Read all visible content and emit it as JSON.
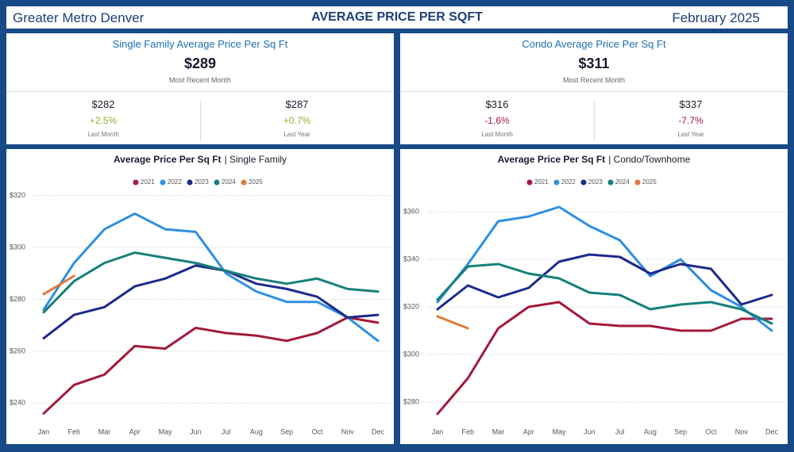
{
  "header": {
    "region": "Greater Metro Denver",
    "title": "AVERAGE PRICE PER SQFT",
    "date": "February 2025"
  },
  "kpis": [
    {
      "title": "Single Family Average Price Per Sq Ft",
      "value": "$289",
      "subtitle": "Most Recent Month",
      "comparisons": [
        {
          "value": "$282",
          "change": "+2.5%",
          "color": "#8ab52a",
          "label": "Last Month"
        },
        {
          "value": "$287",
          "change": "+0.7%",
          "color": "#8ab52a",
          "label": "Last Year"
        }
      ]
    },
    {
      "title": "Condo Average Price Per Sq Ft",
      "value": "$311",
      "subtitle": "Most Recent Month",
      "comparisons": [
        {
          "value": "$316",
          "change": "-1.6%",
          "color": "#a31a3b",
          "label": "Last Month"
        },
        {
          "value": "$337",
          "change": "-7.7%",
          "color": "#a31a3b",
          "label": "Last Year"
        }
      ]
    }
  ],
  "chart_data": [
    {
      "type": "line",
      "title": "Average Price Per Sq Ft",
      "subtitle": "| Single Family",
      "categories": [
        "Jan",
        "Feb",
        "Mar",
        "Apr",
        "May",
        "Jun",
        "Jul",
        "Aug",
        "Sep",
        "Oct",
        "Nov",
        "Dec"
      ],
      "ylim": [
        234,
        322
      ],
      "yticks": [
        {
          "value": 240,
          "label": "$240"
        },
        {
          "value": 260,
          "label": "$260"
        },
        {
          "value": 280,
          "label": "$280"
        },
        {
          "value": 300,
          "label": "$300"
        },
        {
          "value": 320,
          "label": "$320"
        }
      ],
      "grid": true,
      "legend": "top",
      "series": [
        {
          "name": "2021",
          "color": "#a31a3b",
          "values": [
            236,
            247,
            251,
            262,
            261,
            269,
            267,
            266,
            264,
            267,
            273,
            271
          ]
        },
        {
          "name": "2022",
          "color": "#2e8fe0",
          "values": [
            276,
            294,
            307,
            313,
            307,
            306,
            290,
            283,
            279,
            279,
            273,
            264
          ]
        },
        {
          "name": "2023",
          "color": "#1d2a8a",
          "values": [
            265,
            274,
            277,
            285,
            288,
            293,
            291,
            286,
            284,
            281,
            273,
            274
          ]
        },
        {
          "name": "2024",
          "color": "#17807a",
          "values": [
            275,
            287,
            294,
            298,
            296,
            294,
            291,
            288,
            286,
            288,
            284,
            283
          ]
        },
        {
          "name": "2025",
          "color": "#e07a3c",
          "values": [
            282,
            289,
            null,
            null,
            null,
            null,
            null,
            null,
            null,
            null,
            null,
            null
          ]
        }
      ]
    },
    {
      "type": "line",
      "title": "Average Price Per Sq Ft",
      "subtitle": "| Condo/Townhome",
      "categories": [
        "Jan",
        "Feb",
        "Mar",
        "Apr",
        "May",
        "Jun",
        "Jul",
        "Aug",
        "Sep",
        "Oct",
        "Nov",
        "Dec"
      ],
      "ylim": [
        273,
        369
      ],
      "yticks": [
        {
          "value": 280,
          "label": "$280"
        },
        {
          "value": 300,
          "label": "$300"
        },
        {
          "value": 320,
          "label": "$320"
        },
        {
          "value": 340,
          "label": "$340"
        },
        {
          "value": 360,
          "label": "$360"
        }
      ],
      "grid": true,
      "legend": "top",
      "series": [
        {
          "name": "2021",
          "color": "#a31a3b",
          "values": [
            275,
            290,
            311,
            320,
            322,
            313,
            312,
            312,
            310,
            310,
            315,
            315
          ]
        },
        {
          "name": "2022",
          "color": "#2e8fe0",
          "values": [
            322,
            338,
            356,
            358,
            362,
            354,
            348,
            333,
            340,
            327,
            320,
            310
          ]
        },
        {
          "name": "2023",
          "color": "#1d2a8a",
          "values": [
            319,
            329,
            324,
            328,
            339,
            342,
            341,
            334,
            338,
            336,
            321,
            325
          ]
        },
        {
          "name": "2024",
          "color": "#17807a",
          "values": [
            323,
            337,
            338,
            334,
            332,
            326,
            325,
            319,
            321,
            322,
            319,
            313
          ]
        },
        {
          "name": "2025",
          "color": "#e07a3c",
          "values": [
            316,
            311,
            null,
            null,
            null,
            null,
            null,
            null,
            null,
            null,
            null,
            null
          ]
        }
      ]
    }
  ]
}
